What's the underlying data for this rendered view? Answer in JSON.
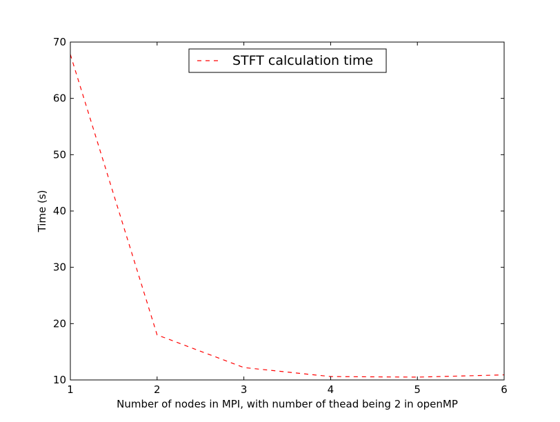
{
  "chart_data": {
    "type": "line",
    "title": "",
    "xlabel": "Number of nodes in MPI, with number of thead being 2 in openMP",
    "ylabel": "Time (s)",
    "xlim": [
      1,
      6
    ],
    "ylim": [
      10,
      70
    ],
    "xticks": [
      "1",
      "2",
      "3",
      "4",
      "5",
      "6"
    ],
    "yticks": [
      "10",
      "20",
      "30",
      "40",
      "50",
      "60",
      "70"
    ],
    "grid": false,
    "legend_position": "upper center",
    "series": [
      {
        "name": "STFT calculation time",
        "color": "#ff0000",
        "line_style": "dashed",
        "x": [
          1,
          2,
          3,
          4,
          5,
          6
        ],
        "y": [
          67.8,
          18.0,
          12.2,
          10.6,
          10.5,
          10.9
        ]
      }
    ]
  }
}
